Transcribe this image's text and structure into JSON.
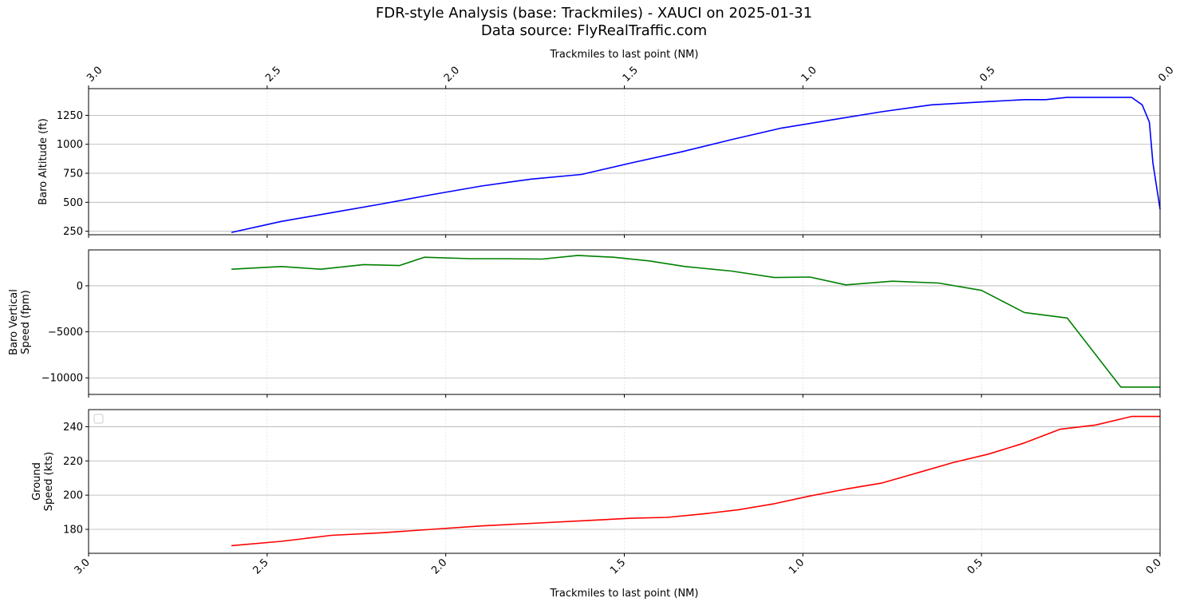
{
  "figure": {
    "title_line1": "FDR-style Analysis (base: Trackmiles) - XAUCI on 2025-01-31",
    "title_line2": "Data source: FlyRealTraffic.com"
  },
  "chart_data": [
    {
      "type": "line",
      "series": [
        {
          "color": "#0000ff",
          "values": [
            240,
            335,
            410,
            485,
            565,
            640,
            700,
            740,
            840,
            935,
            1040,
            1140,
            1210,
            1280,
            1340,
            1365,
            1385,
            1385,
            1405,
            1405,
            1405,
            1405,
            1340,
            1190,
            840,
            440
          ]
        }
      ],
      "x": [
        2.6,
        2.46,
        2.32,
        2.18,
        2.04,
        1.9,
        1.76,
        1.62,
        1.48,
        1.34,
        1.2,
        1.06,
        0.92,
        0.78,
        0.64,
        0.5,
        0.38,
        0.32,
        0.26,
        0.2,
        0.14,
        0.08,
        0.05,
        0.03,
        0.02,
        0.0
      ],
      "xlim": [
        3.0,
        0.0
      ],
      "ylim": [
        220,
        1480
      ],
      "yticks": [
        250,
        500,
        750,
        1000,
        1250
      ],
      "ylabel": "Baro Altitude (ft)",
      "xlabel": "Trackmiles to last point (NM)",
      "xticks": [
        "3.0",
        "2.5",
        "2.0",
        "1.5",
        "1.0",
        "0.5",
        "0.0"
      ],
      "grid": true
    },
    {
      "type": "line",
      "series": [
        {
          "color": "#008000",
          "values": [
            1800,
            2100,
            1800,
            2300,
            2200,
            3100,
            2950,
            2950,
            2900,
            3300,
            3100,
            2700,
            2100,
            1600,
            900,
            950,
            100,
            500,
            300,
            -500,
            -2900,
            -3500,
            -11000,
            -11000
          ]
        }
      ],
      "x": [
        2.6,
        2.46,
        2.35,
        2.23,
        2.13,
        2.06,
        1.93,
        1.83,
        1.73,
        1.63,
        1.53,
        1.43,
        1.33,
        1.2,
        1.08,
        0.98,
        0.88,
        0.75,
        0.62,
        0.5,
        0.38,
        0.26,
        0.11,
        0.0
      ],
      "xlim": [
        3.0,
        0.0
      ],
      "ylim": [
        -11800,
        3900
      ],
      "yticks": [
        -10000,
        -5000,
        0
      ],
      "ylabel": "Baro Vertical Speed (fpm)",
      "grid": true
    },
    {
      "type": "line",
      "series": [
        {
          "color": "#ff0000",
          "values": [
            170.5,
            173,
            176.5,
            178,
            180,
            182,
            183.5,
            185,
            186.5,
            187,
            189,
            191.5,
            195,
            199.5,
            203.5,
            207,
            213,
            219,
            224,
            230.5,
            238.5,
            241,
            246,
            246
          ]
        }
      ],
      "x": [
        2.6,
        2.46,
        2.32,
        2.18,
        2.04,
        1.9,
        1.76,
        1.62,
        1.48,
        1.38,
        1.28,
        1.18,
        1.08,
        0.98,
        0.88,
        0.78,
        0.68,
        0.58,
        0.48,
        0.38,
        0.28,
        0.18,
        0.08,
        0.0
      ],
      "xlim": [
        3.0,
        0.0
      ],
      "ylim": [
        166,
        250
      ],
      "yticks": [
        180,
        200,
        220,
        240
      ],
      "ylabel": "Ground Speed (kts)",
      "xlabel": "Trackmiles to last point (NM)",
      "xticks": [
        "3.0",
        "2.5",
        "2.0",
        "1.5",
        "1.0",
        "0.5",
        "0.0"
      ],
      "grid": true,
      "legend": "top-left (empty)"
    }
  ]
}
